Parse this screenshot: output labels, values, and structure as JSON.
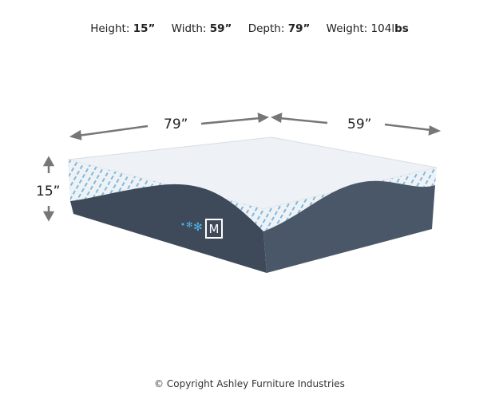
{
  "specs": {
    "height_label": "Height:",
    "height_value": "15”",
    "width_label": "Width:",
    "width_value": "59”",
    "depth_label": "Depth:",
    "depth_value": "79”",
    "weight_label": "Weight:",
    "weight_value": "104l",
    "weight_unit": "bs"
  },
  "dimensions": {
    "depth": "79”",
    "width": "59”",
    "height": "15”"
  },
  "logo": {
    "letter": "M",
    "icon": "snowflake-icon"
  },
  "colors": {
    "cover": "#e8eef3",
    "base": "#3e4a5a",
    "pattern": "#3d9fd6",
    "arrow": "#777777"
  },
  "copyright": "© Copyright Ashley Furniture Industries"
}
